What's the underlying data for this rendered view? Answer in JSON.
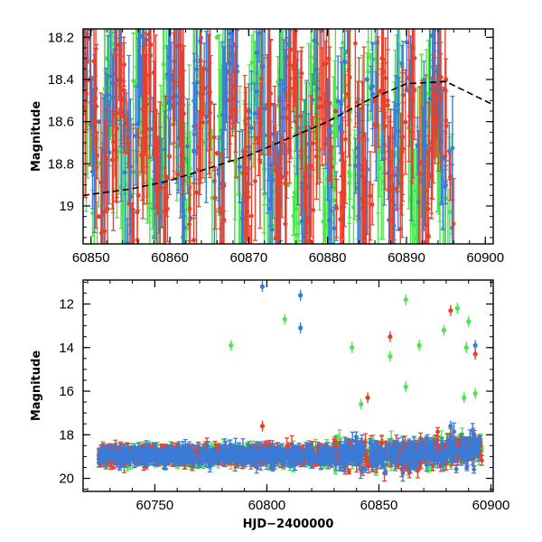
{
  "chart_data": [
    {
      "type": "scatter",
      "panel": "top",
      "title": "",
      "xlabel": "",
      "ylabel": "Magnitude",
      "xlim": [
        60849,
        60901
      ],
      "ylim": [
        19.18,
        18.16
      ],
      "y_inverted": true,
      "x_ticks": [
        60850,
        60860,
        60870,
        60880,
        60890,
        60900
      ],
      "y_ticks": [
        18.2,
        18.4,
        18.6,
        18.8,
        19
      ],
      "y_tick_labels": [
        "18.2",
        "18.4",
        "18.6",
        "18.8",
        "19"
      ],
      "grid": false,
      "legend": "none",
      "series": [
        {
          "color": "#e8402a",
          "x_range": [
            60849,
            60896
          ],
          "mean_mag": 18.72,
          "scatter": 0.28,
          "note_points": [
            [
              60851,
              19.05
            ],
            [
              60856,
              18.95
            ],
            [
              60861,
              18.85
            ],
            [
              60866,
              18.75
            ],
            [
              60871,
              18.68
            ],
            [
              60876,
              18.6
            ],
            [
              60881,
              18.55
            ],
            [
              60886,
              18.5
            ],
            [
              60891,
              18.45
            ],
            [
              60895,
              18.4
            ]
          ]
        },
        {
          "color": "#3b7bd8",
          "x_range": [
            60849,
            60896
          ],
          "mean_mag": 18.6,
          "scatter": 0.3,
          "note_points": [
            [
              60851,
              18.6
            ],
            [
              60860,
              18.5
            ],
            [
              60870,
              18.55
            ],
            [
              60880,
              18.6
            ],
            [
              60885,
              18.4
            ],
            [
              60890,
              18.45
            ],
            [
              60894,
              18.5
            ]
          ]
        },
        {
          "color": "#4ee44e",
          "x_range": [
            60849,
            60896
          ],
          "mean_mag": 18.7,
          "scatter": 0.35,
          "note_points": [
            [
              60852,
              18.3
            ],
            [
              60858,
              18.6
            ],
            [
              60866,
              18.2
            ],
            [
              60875,
              18.9
            ],
            [
              60882,
              18.5
            ],
            [
              60888,
              18.8
            ]
          ]
        },
        {
          "color": "#000000",
          "type": "line",
          "x": [
            60849,
            60855,
            60860,
            60865,
            60870,
            60875,
            60880,
            60885,
            60890,
            60895,
            60901
          ],
          "y": [
            18.95,
            18.92,
            18.88,
            18.82,
            18.76,
            18.68,
            18.6,
            18.5,
            18.42,
            18.41,
            18.52
          ]
        }
      ]
    },
    {
      "type": "scatter",
      "panel": "bottom",
      "title": "",
      "xlabel": "HJD−2400000",
      "ylabel": "Magnitude",
      "xlim": [
        60718,
        60901
      ],
      "ylim": [
        20.6,
        10.9
      ],
      "y_inverted": true,
      "x_ticks": [
        60750,
        60800,
        60850,
        60900
      ],
      "y_ticks": [
        12,
        14,
        16,
        18,
        20
      ],
      "y_tick_labels": [
        "12",
        "14",
        "16",
        "18",
        "20"
      ],
      "grid": false,
      "legend": "none",
      "series": [
        {
          "color": "#3b7bd8",
          "outliers": [
            [
              60798,
              11.2
            ],
            [
              60815,
              11.6
            ],
            [
              60815,
              13.1
            ],
            [
              60893,
              13.9
            ],
            [
              60882,
              17.6
            ]
          ]
        },
        {
          "color": "#4ee44e",
          "outliers": [
            [
              60808,
              12.7
            ],
            [
              60784,
              13.9
            ],
            [
              60838,
              14.0
            ],
            [
              60862,
              11.8
            ],
            [
              60868,
              13.9
            ],
            [
              60879,
              13.2
            ],
            [
              60885,
              12.2
            ],
            [
              60890,
              12.8
            ],
            [
              60889,
              14.0
            ],
            [
              60855,
              14.4
            ],
            [
              60893,
              16.1
            ],
            [
              60862,
              15.8
            ],
            [
              60842,
              16.6
            ],
            [
              60888,
              16.3
            ]
          ]
        },
        {
          "color": "#e8402a",
          "outliers": [
            [
              60882,
              12.3
            ],
            [
              60855,
              13.5
            ],
            [
              60893,
              14.3
            ],
            [
              60845,
              16.3
            ],
            [
              60798,
              17.6
            ]
          ]
        }
      ]
    }
  ]
}
